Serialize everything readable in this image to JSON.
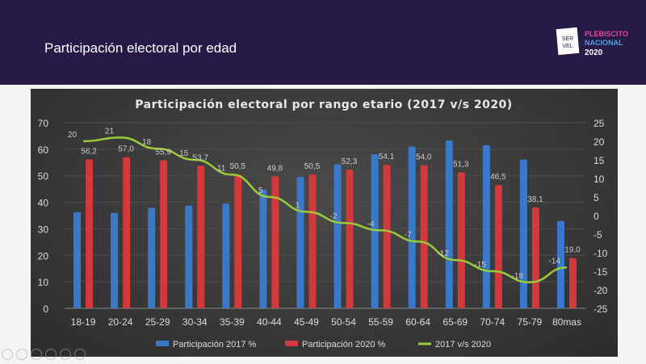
{
  "slide": {
    "title": "Participación electoral por edad"
  },
  "logo": {
    "servel_text": "SER VEL",
    "plebiscito": "PLEBISCITO",
    "nacional": "NACIONAL",
    "year": "2020"
  },
  "colors": {
    "banner": "#261a47",
    "series_2017": "#3a78c9",
    "series_2020": "#d2383c",
    "line": "#9ccb3a"
  },
  "chart_data": {
    "type": "bar+line",
    "title": "Participación electoral por rango etario (2017 v/s 2020)",
    "categories": [
      "18-19",
      "20-24",
      "25-29",
      "30-34",
      "35-39",
      "40-44",
      "45-49",
      "50-54",
      "55-59",
      "60-64",
      "65-69",
      "70-74",
      "75-79",
      "80mas"
    ],
    "series": [
      {
        "name": "Participación 2017 %",
        "type": "bar",
        "axis": "left",
        "values": [
          36.2,
          36.0,
          37.9,
          38.7,
          39.5,
          44.8,
          49.5,
          54.3,
          58.1,
          61.0,
          63.3,
          61.5,
          56.1,
          33.0
        ]
      },
      {
        "name": "Participación 2020 %",
        "type": "bar",
        "axis": "left",
        "values": [
          56.2,
          57.0,
          55.9,
          53.7,
          50.5,
          49.8,
          50.5,
          52.3,
          54.1,
          54.0,
          51.3,
          46.5,
          38.1,
          19.0
        ],
        "labels": [
          "56,2",
          "57,0",
          "55,9",
          "53,7",
          "50,5",
          "49,8",
          "50,5",
          "52,3",
          "54,1",
          "54,0",
          "51,3",
          "46,5",
          "38,1",
          "19,0"
        ]
      },
      {
        "name": "2017 v/s 2020",
        "type": "line",
        "axis": "right",
        "values": [
          20,
          21,
          18,
          15,
          11,
          5,
          1,
          -2,
          -4,
          -7,
          -12,
          -15,
          -18,
          -14
        ]
      }
    ],
    "left_axis": {
      "range": [
        0,
        70
      ],
      "ticks": [
        0,
        10,
        20,
        30,
        40,
        50,
        60,
        70
      ]
    },
    "right_axis": {
      "range": [
        -25,
        25
      ],
      "ticks": [
        -25,
        -20,
        -15,
        -10,
        -5,
        0,
        5,
        10,
        15,
        20,
        25
      ]
    },
    "grid": true,
    "legend": "bottom"
  }
}
